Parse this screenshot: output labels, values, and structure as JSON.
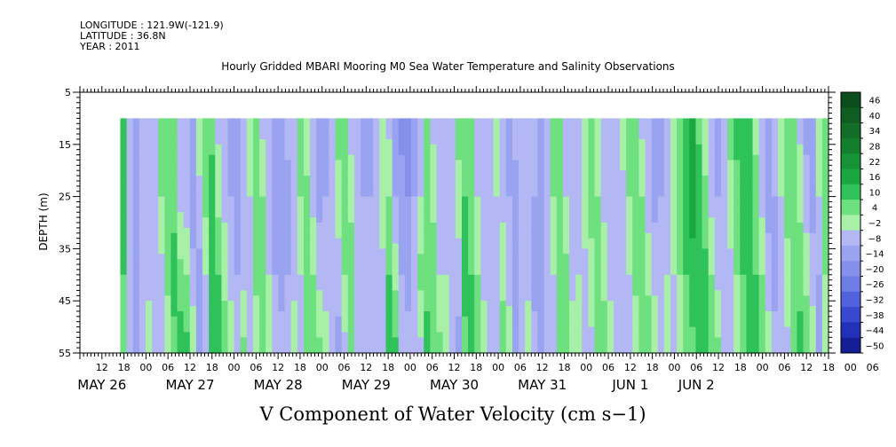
{
  "header": {
    "longitude": "LONGITUDE : 121.9W(-121.9)",
    "latitude": "LATITUDE : 36.8N",
    "year": "YEAR : 2011"
  },
  "chart_data": {
    "type": "heatmap",
    "title": "Hourly Gridded MBARI Mooring M0 Sea Water Temperature and Salinity Observations",
    "xlabel": "V Component of Water Velocity (cm s−1)",
    "ylabel": "DEPTH (m)",
    "y_ticks": [
      5,
      15,
      25,
      35,
      45,
      55
    ],
    "ylim": [
      5,
      55
    ],
    "y_reversed": true,
    "data_depth_range": [
      10,
      55
    ],
    "x_hour_range": [
      6,
      210
    ],
    "data_hour_start": 17,
    "hour_tick_labels": [
      "12",
      "18",
      "00",
      "06",
      "12",
      "18",
      "00",
      "06",
      "12",
      "18",
      "00",
      "06",
      "12",
      "18",
      "00",
      "06",
      "12",
      "18",
      "00",
      "06",
      "12",
      "18",
      "00",
      "06",
      "12",
      "18",
      "00",
      "06",
      "12",
      "18",
      "00",
      "06",
      "12",
      "18",
      "00",
      "06"
    ],
    "day_labels": [
      {
        "label": "MAY 26",
        "hour": 12
      },
      {
        "label": "MAY 27",
        "hour": 36
      },
      {
        "label": "MAY 28",
        "hour": 60
      },
      {
        "label": "MAY 29",
        "hour": 84
      },
      {
        "label": "MAY 30",
        "hour": 108
      },
      {
        "label": "MAY 31",
        "hour": 132
      },
      {
        "label": "JUN  1",
        "hour": 156
      },
      {
        "label": "JUN  2",
        "hour": 174
      }
    ],
    "colorbar": {
      "levels": [
        "46",
        "40",
        "34",
        "28",
        "22",
        "16",
        "10",
        "4",
        "−2",
        "−8",
        "−14",
        "−20",
        "−26",
        "−32",
        "−38",
        "−44",
        "−50"
      ],
      "range": [
        -50,
        52
      ]
    },
    "column_values": [
      [
        12,
        12,
        10,
        8
      ],
      [
        -4,
        -6,
        -8,
        -6
      ],
      [
        -8,
        -10,
        -12,
        -10
      ],
      [
        -6,
        -8,
        -6,
        -4
      ],
      [
        -2,
        -6,
        -4,
        2
      ],
      [
        -4,
        -8,
        -6,
        -4
      ],
      [
        6,
        4,
        -4,
        -8
      ],
      [
        8,
        10,
        6,
        -2
      ],
      [
        4,
        8,
        12,
        8
      ],
      [
        -6,
        -4,
        6,
        14
      ],
      [
        -8,
        -6,
        4,
        12
      ],
      [
        -10,
        -12,
        -6,
        4
      ],
      [
        4,
        -4,
        -10,
        -8
      ],
      [
        10,
        6,
        -2,
        -6
      ],
      [
        8,
        12,
        16,
        10
      ],
      [
        -4,
        2,
        10,
        14
      ],
      [
        -6,
        -4,
        2,
        8
      ],
      [
        -10,
        -8,
        -4,
        2
      ],
      [
        -12,
        -10,
        -8,
        -4
      ],
      [
        -6,
        -8,
        -4,
        6
      ],
      [
        4,
        -2,
        -6,
        -4
      ],
      [
        8,
        10,
        6,
        -2
      ],
      [
        -4,
        4,
        8,
        10
      ],
      [
        -8,
        -6,
        -2,
        4
      ],
      [
        -10,
        -12,
        -8,
        -4
      ],
      [
        -14,
        -12,
        -10,
        -6
      ],
      [
        -6,
        -10,
        -8,
        -2
      ],
      [
        -4,
        -6,
        -4,
        2
      ],
      [
        8,
        4,
        -2,
        -6
      ],
      [
        -2,
        6,
        8,
        4
      ],
      [
        -8,
        -4,
        4,
        10
      ],
      [
        -12,
        -10,
        -4,
        6
      ],
      [
        -10,
        -8,
        -6,
        2
      ],
      [
        -4,
        -6,
        -4,
        -6
      ],
      [
        6,
        2,
        -6,
        -10
      ],
      [
        10,
        8,
        4,
        -4
      ],
      [
        -6,
        2,
        8,
        10
      ],
      [
        -8,
        -6,
        -2,
        -4
      ],
      [
        -12,
        -8,
        -6,
        -4
      ],
      [
        -10,
        -8,
        -6,
        -2
      ],
      [
        -4,
        -6,
        -4,
        -8
      ],
      [
        4,
        2,
        -4,
        -6
      ],
      [
        -4,
        4,
        10,
        12
      ],
      [
        -10,
        -8,
        2,
        12
      ],
      [
        -16,
        -12,
        -8,
        -2
      ],
      [
        -18,
        -14,
        -10,
        -6
      ],
      [
        -10,
        -8,
        -4,
        -8
      ],
      [
        -4,
        -2,
        6,
        -4
      ],
      [
        4,
        6,
        8,
        12
      ],
      [
        -4,
        2,
        8,
        10
      ],
      [
        -8,
        -4,
        -2,
        6
      ],
      [
        -6,
        -4,
        -2,
        4
      ],
      [
        -2,
        -4,
        -6,
        -8
      ],
      [
        6,
        2,
        -6,
        -10
      ],
      [
        8,
        10,
        12,
        8
      ],
      [
        4,
        6,
        10,
        14
      ],
      [
        -4,
        -2,
        4,
        10
      ],
      [
        -8,
        -6,
        -4,
        2
      ],
      [
        -6,
        -8,
        -6,
        -4
      ],
      [
        2,
        -2,
        -8,
        -6
      ],
      [
        -6,
        -4,
        2,
        8
      ],
      [
        -10,
        -8,
        -6,
        4
      ],
      [
        -6,
        -10,
        -12,
        -8
      ],
      [
        -2,
        -4,
        -6,
        -4
      ],
      [
        -4,
        -2,
        -4,
        2
      ],
      [
        -6,
        -8,
        -10,
        -6
      ],
      [
        -8,
        -10,
        -12,
        -10
      ],
      [
        -4,
        -6,
        -8,
        -8
      ],
      [
        8,
        4,
        -2,
        -6
      ],
      [
        6,
        10,
        8,
        4
      ],
      [
        -4,
        -2,
        6,
        10
      ],
      [
        -8,
        -6,
        -4,
        2
      ],
      [
        -6,
        -4,
        -2,
        4
      ],
      [
        4,
        2,
        -4,
        -2
      ],
      [
        8,
        6,
        2,
        -4
      ],
      [
        -2,
        4,
        8,
        6
      ],
      [
        -6,
        -4,
        2,
        8
      ],
      [
        -8,
        -6,
        -4,
        2
      ],
      [
        -4,
        -8,
        -6,
        -4
      ],
      [
        2,
        -4,
        -8,
        -6
      ],
      [
        6,
        4,
        -2,
        -8
      ],
      [
        8,
        10,
        6,
        -2
      ],
      [
        -4,
        4,
        10,
        8
      ],
      [
        -8,
        -6,
        2,
        10
      ],
      [
        -12,
        -10,
        -4,
        4
      ],
      [
        -10,
        -8,
        -6,
        -2
      ],
      [
        -6,
        -4,
        -2,
        4
      ],
      [
        4,
        2,
        -2,
        -4
      ],
      [
        10,
        8,
        4,
        -2
      ],
      [
        14,
        16,
        10,
        4
      ],
      [
        16,
        18,
        14,
        8
      ],
      [
        8,
        14,
        16,
        12
      ],
      [
        -2,
        6,
        12,
        14
      ],
      [
        -6,
        -4,
        4,
        10
      ],
      [
        -10,
        -8,
        -4,
        6
      ],
      [
        -4,
        -6,
        -8,
        -4
      ],
      [
        6,
        2,
        -4,
        -6
      ],
      [
        12,
        8,
        4,
        -2
      ],
      [
        14,
        12,
        10,
        6
      ],
      [
        10,
        12,
        14,
        10
      ],
      [
        2,
        6,
        10,
        12
      ],
      [
        -6,
        -4,
        4,
        8
      ],
      [
        -8,
        -10,
        -6,
        2
      ],
      [
        -4,
        -8,
        -10,
        -6
      ],
      [
        4,
        -2,
        -6,
        -8
      ],
      [
        8,
        6,
        2,
        -4
      ],
      [
        4,
        8,
        10,
        6
      ],
      [
        -4,
        2,
        8,
        12
      ],
      [
        -10,
        -6,
        2,
        10
      ],
      [
        -12,
        -10,
        -6,
        4
      ],
      [
        4,
        -2,
        -8,
        -10
      ],
      [
        10,
        8,
        4,
        -2
      ]
    ]
  }
}
